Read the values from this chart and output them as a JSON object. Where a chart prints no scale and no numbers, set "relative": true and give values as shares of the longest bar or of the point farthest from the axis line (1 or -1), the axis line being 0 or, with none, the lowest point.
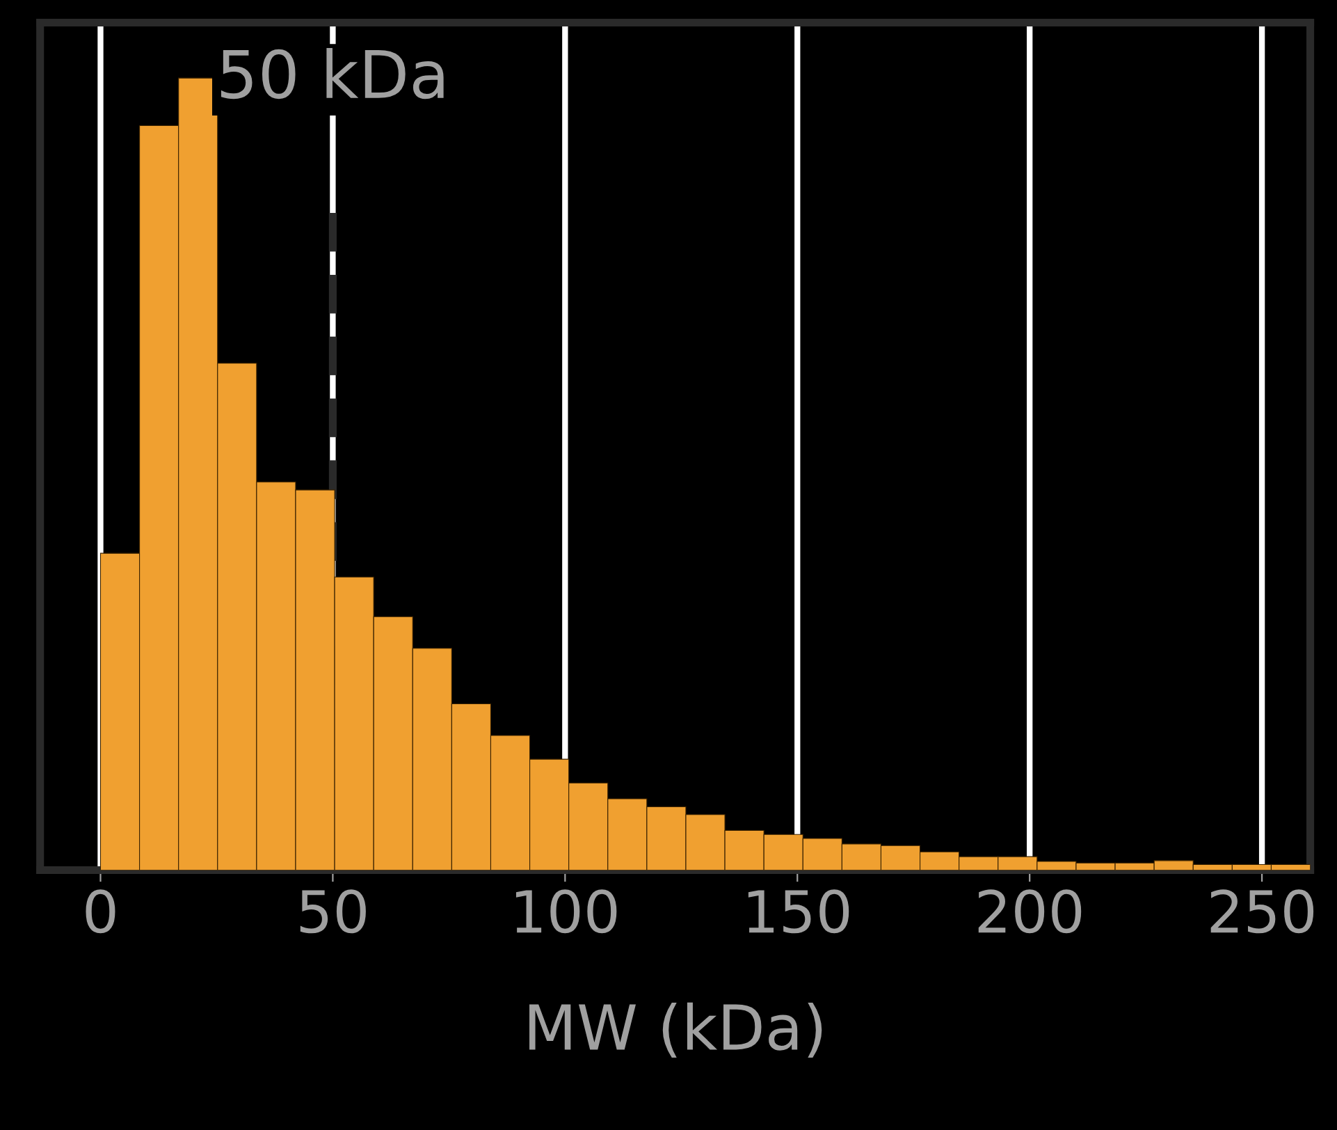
{
  "chart_data": {
    "type": "bar",
    "xlabel": "MW (kDa)",
    "relative": true,
    "x": [
      4.2,
      12.6,
      21,
      29.4,
      37.8,
      46.2,
      54.6,
      63,
      71.4,
      79.8,
      88.2,
      96.6,
      105,
      113.4,
      121.8,
      130.2,
      138.6,
      147,
      155.4,
      163.8,
      172.2,
      180.6,
      189,
      197.4,
      205.8,
      214.2,
      222.6,
      231,
      239.4,
      247.8,
      256.2
    ],
    "values": [
      0.4,
      0.94,
      1,
      0.64,
      0.49,
      0.48,
      0.37,
      0.32,
      0.28,
      0.21,
      0.17,
      0.14,
      0.11,
      0.09,
      0.08,
      0.07,
      0.05,
      0.045,
      0.04,
      0.033,
      0.031,
      0.023,
      0.017,
      0.017,
      0.011,
      0.009,
      0.009,
      0.012,
      0.007,
      0.007,
      0.007
    ],
    "color": "#f0a030",
    "xlim": [
      -13,
      260.4
    ],
    "xticks": [
      0,
      50,
      100,
      150,
      200,
      250
    ],
    "ref_lines": [
      {
        "axis": "x",
        "value": 50,
        "label": "50 kDa",
        "color": "#2a2a2a",
        "line_style": "dashed"
      }
    ],
    "grid": "x"
  }
}
